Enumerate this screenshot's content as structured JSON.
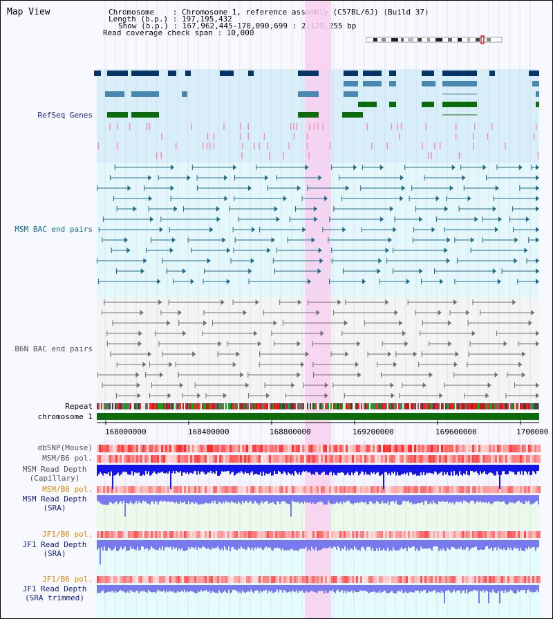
{
  "window": {
    "title": "Map View"
  },
  "info": {
    "line1": "Chromosome    : Chromosome 1, reference assembly (C57BL/6J) (Build 37)",
    "line2": "Length (b.p.) : 197,195,432",
    "line3": "Show (b.p.) : 167,962,445-170,090,699 : 2,128,255 bp",
    "line4": "Read coverage check span : 10,000"
  },
  "tracks": {
    "refseq": "RefSeq Genes",
    "msm_bac": "MSM BAC end pairs",
    "b6n_bac": "B6N BAC end pairs",
    "repeat": "Repeat",
    "chromosome": "chromosome 1",
    "dbsnp": "dbSNP(Mouse)",
    "msm_b6_pol_1": "MSM/B6 pol.",
    "msm_depth_cap_1": "MSM Read Depth",
    "msm_depth_cap_2": "(Capillary)",
    "msm_b6_pol_2": "MSM/B6 pol.",
    "msm_depth_sra_1": "MSM Read Depth",
    "msm_depth_sra_2": "(SRA)",
    "jf1_b6_pol_1": "JF1/B6 pol.",
    "jf1_depth_sra_1": "JF1 Read Depth",
    "jf1_depth_sra_2": "(SRA)",
    "jf1_b6_pol_2": "JF1/B6 pol.",
    "jf1_depth_trim_1": "JF1 Read Depth",
    "jf1_depth_trim_2": "(SRA trimmed)"
  },
  "axis": {
    "ticks": [
      "168000000",
      "168400000",
      "168800000",
      "169200000",
      "169600000",
      "1700000"
    ]
  },
  "colors": {
    "refseq_bg": "#d8eef8",
    "msm_bg": "#e4f8fc",
    "b6n_bg": "#f4f4f4",
    "highlight": "#f8d0f0",
    "gene_navy": "#063464",
    "gene_blue": "#4888b0",
    "gene_green": "#0c6c0c",
    "msm_line": "#1c6c8c",
    "b6n_line": "#707070",
    "depth_blue": "#1414e8",
    "depth_light": "#7878f0",
    "pol_red": "#ff4040",
    "label_navy": "#102080",
    "label_teal": "#086c8c",
    "label_orange": "#e08800",
    "label_gray": "#505050"
  }
}
